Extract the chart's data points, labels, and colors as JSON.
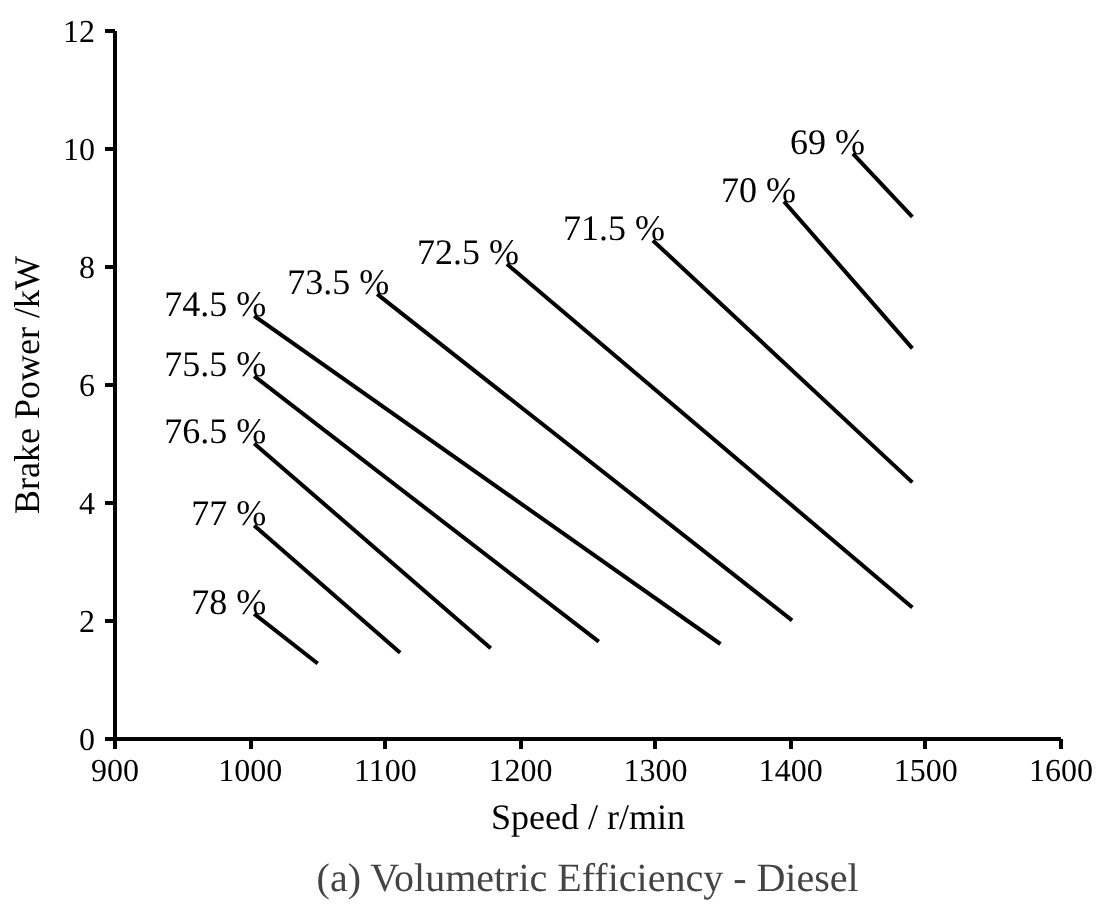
{
  "chart_data": {
    "type": "line",
    "title": "(a) Volumetric Efficiency - Diesel",
    "xlabel": "Speed / r/min",
    "ylabel": "Brake Power /kW",
    "xlim": [
      900,
      1600
    ],
    "xticks": [
      900,
      1000,
      1100,
      1200,
      1300,
      1400,
      1500,
      1600
    ],
    "ylim": [
      0,
      12
    ],
    "yticks": [
      0,
      2,
      4,
      6,
      8,
      10,
      12
    ],
    "grid": false,
    "legend": false,
    "marker": "none",
    "line_style": "solid",
    "series": [
      {
        "name": "78 %",
        "color": "#000000",
        "x": [
          1003,
          1050
        ],
        "values": [
          2.12,
          1.28
        ]
      },
      {
        "name": "77 %",
        "color": "#000000",
        "x": [
          1003,
          1111
        ],
        "values": [
          3.62,
          1.46
        ]
      },
      {
        "name": "76.5 %",
        "color": "#000000",
        "x": [
          1003,
          1178
        ],
        "values": [
          5.01,
          1.54
        ]
      },
      {
        "name": "75.5 %",
        "color": "#000000",
        "x": [
          1003,
          1258
        ],
        "values": [
          6.15,
          1.65
        ]
      },
      {
        "name": "74.5 %",
        "color": "#000000",
        "x": [
          1003,
          1348
        ],
        "values": [
          7.17,
          1.61
        ]
      },
      {
        "name": "73.5 %",
        "color": "#000000",
        "x": [
          1094,
          1401
        ],
        "values": [
          7.54,
          2.01
        ]
      },
      {
        "name": "72.5 %",
        "color": "#000000",
        "x": [
          1190,
          1490
        ],
        "values": [
          8.05,
          2.23
        ]
      },
      {
        "name": "71.5 %",
        "color": "#000000",
        "x": [
          1298,
          1490
        ],
        "values": [
          8.45,
          4.35
        ]
      },
      {
        "name": "70 %",
        "color": "#000000",
        "x": [
          1395,
          1490
        ],
        "values": [
          9.11,
          6.62
        ]
      },
      {
        "name": "69 %",
        "color": "#000000",
        "x": [
          1446,
          1490
        ],
        "values": [
          9.92,
          8.85
        ]
      }
    ]
  }
}
